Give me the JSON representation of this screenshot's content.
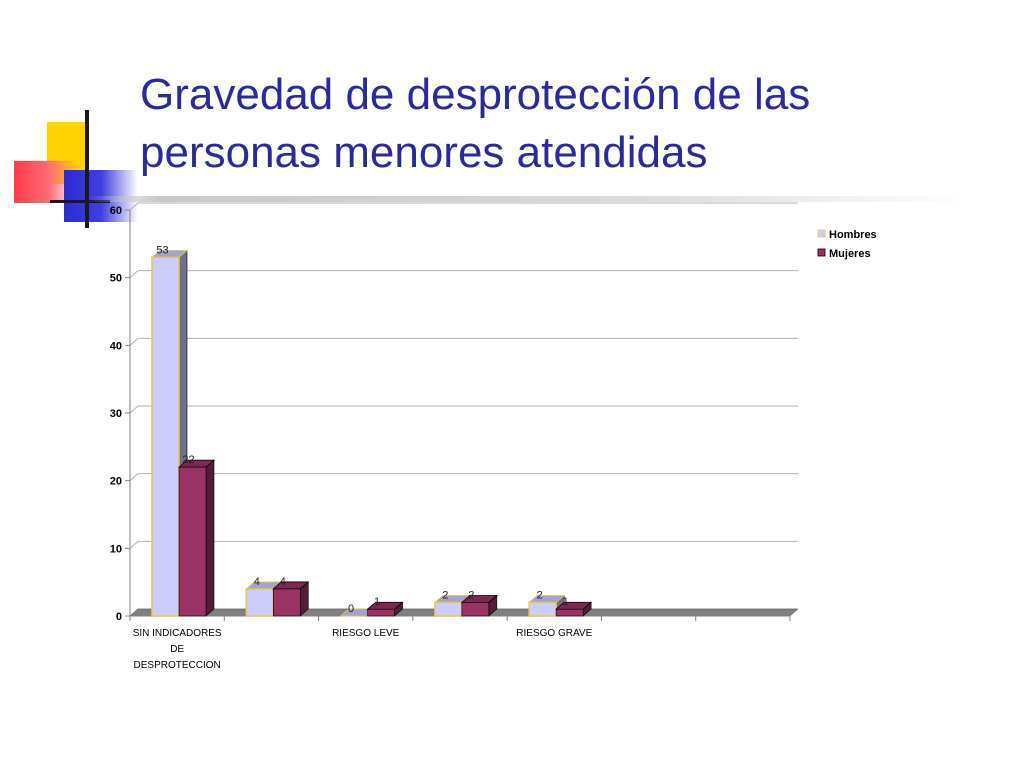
{
  "slide": {
    "title_lines": [
      "Gravedad de desprotección de las",
      "personas menores atendidas"
    ]
  },
  "colors": {
    "title": "#2a2aa0",
    "hombres_face": "#ccccff",
    "hombres_edge": "#e6c84a",
    "mujeres_face": "#993366",
    "floor": "#808080"
  },
  "chart_data": {
    "type": "bar",
    "title": "",
    "xlabel": "",
    "ylabel": "",
    "ylim": [
      0,
      60
    ],
    "yticks": [
      0,
      10,
      20,
      30,
      40,
      50,
      60
    ],
    "grid": true,
    "legend_position": "right",
    "category_labels": [
      [
        "SIN INDICADORES",
        "DE",
        "DESPROTECCION"
      ],
      [],
      [
        "RIESGO LEVE"
      ],
      [],
      [
        "RIESGO GRAVE"
      ],
      [],
      []
    ],
    "series": [
      {
        "name": "Hombres",
        "values": [
          53,
          4,
          0,
          2,
          2,
          null,
          null
        ],
        "color": "#ccccff"
      },
      {
        "name": "Mujeres",
        "values": [
          22,
          4,
          1,
          2,
          1,
          null,
          null
        ],
        "color": "#993366"
      }
    ]
  }
}
